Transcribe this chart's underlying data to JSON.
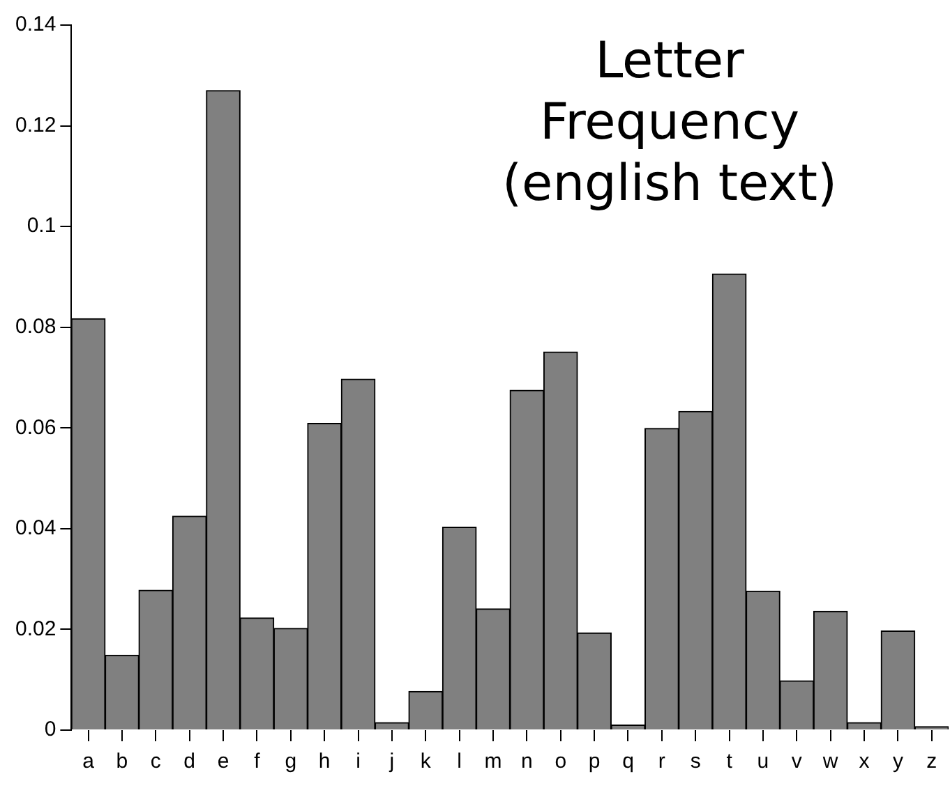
{
  "chart_data": {
    "type": "bar",
    "title": "Letter Frequency (english text)",
    "categories": [
      "a",
      "b",
      "c",
      "d",
      "e",
      "f",
      "g",
      "h",
      "i",
      "j",
      "k",
      "l",
      "m",
      "n",
      "o",
      "p",
      "q",
      "r",
      "s",
      "t",
      "u",
      "v",
      "w",
      "x",
      "y",
      "z"
    ],
    "values": [
      0.0817,
      0.0149,
      0.0278,
      0.0425,
      0.127,
      0.0223,
      0.0202,
      0.0609,
      0.0697,
      0.0015,
      0.0077,
      0.0403,
      0.0241,
      0.0675,
      0.0751,
      0.0193,
      0.001,
      0.0599,
      0.0633,
      0.0906,
      0.0276,
      0.0098,
      0.0236,
      0.0015,
      0.0197,
      0.0007
    ],
    "color": "#808080",
    "ylim": [
      0,
      0.14
    ],
    "yticks": [
      0,
      0.02,
      0.04,
      0.06,
      0.08,
      0.1,
      0.12,
      0.14
    ]
  }
}
